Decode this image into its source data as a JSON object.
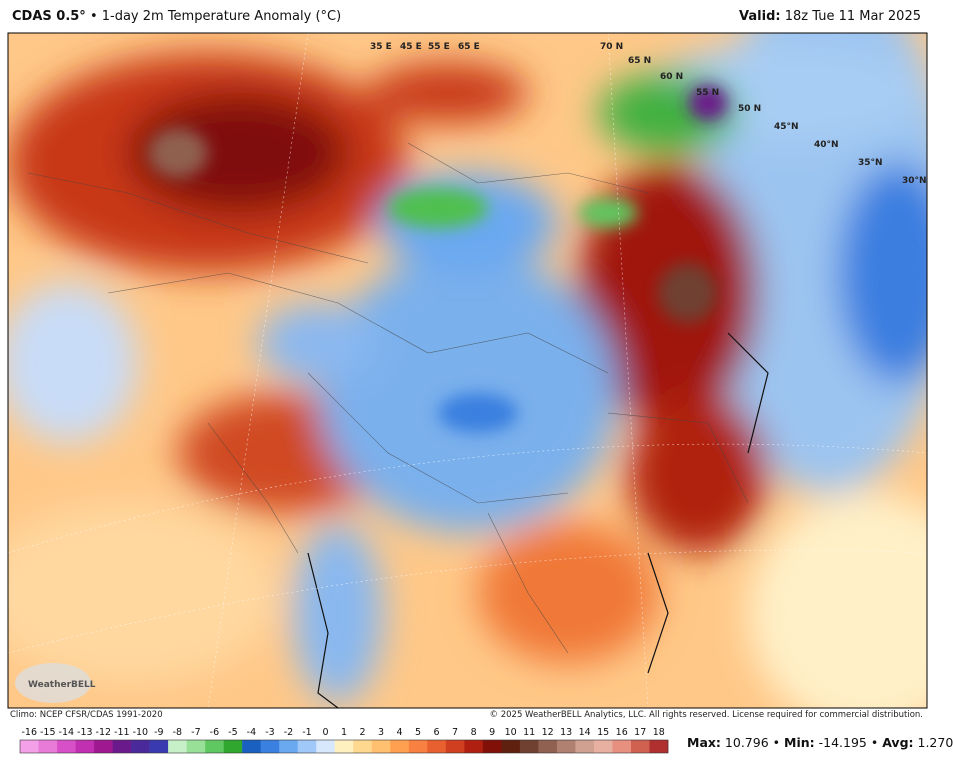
{
  "header": {
    "model": "CDAS 0.5°",
    "title": "1-day 2m Temperature Anomaly (°C)",
    "valid_label": "Valid:",
    "valid_time": "18z Tue 11 Mar 2025"
  },
  "grid_labels": [
    "35 E",
    "45 E",
    "55 E",
    "65 E",
    "70 N",
    "65 N",
    "60 N",
    "55 N",
    "50 N",
    "45°N",
    "40°N",
    "35°N",
    "30°N"
  ],
  "footer": {
    "climo": "Climo: NCEP CFSR/CDAS 1991-2020",
    "copyright": "© 2025 WeatherBELL Analytics, LLC. All rights reserved. License required for commercial distribution."
  },
  "logo": "WeatherBELL",
  "colorbar": {
    "labels": [
      "-16",
      "-15",
      "-14",
      "-13",
      "-12",
      "-11",
      "-10",
      "-9",
      "-8",
      "-7",
      "-6",
      "-5",
      "-4",
      "-3",
      "-2",
      "-1",
      "0",
      "1",
      "2",
      "3",
      "4",
      "5",
      "6",
      "7",
      "8",
      "9",
      "10",
      "11",
      "12",
      "13",
      "14",
      "15",
      "16",
      "17",
      "18"
    ],
    "colors": [
      "#f4a0e8",
      "#e87ad8",
      "#d850c8",
      "#c030b0",
      "#a01890",
      "#6a1a8a",
      "#4a2a9a",
      "#3a3ab0",
      "#c8f0c8",
      "#98e098",
      "#60c860",
      "#30a830",
      "#1a60c0",
      "#3a80e0",
      "#6aa8f0",
      "#a0c8f8",
      "#d8e8fc",
      "#fff0c0",
      "#ffd890",
      "#ffc070",
      "#ffa050",
      "#f88040",
      "#e86030",
      "#d04020",
      "#b02010",
      "#801008",
      "#602010",
      "#704030",
      "#906050",
      "#b08070",
      "#d0a090",
      "#e8b0a0",
      "#e89080",
      "#d06050",
      "#b03030"
    ]
  },
  "stats": [
    {
      "label": "Max:",
      "value": "10.796"
    },
    {
      "label": "Min:",
      "value": "-14.195"
    },
    {
      "label": "Avg:",
      "value": "1.270"
    }
  ]
}
